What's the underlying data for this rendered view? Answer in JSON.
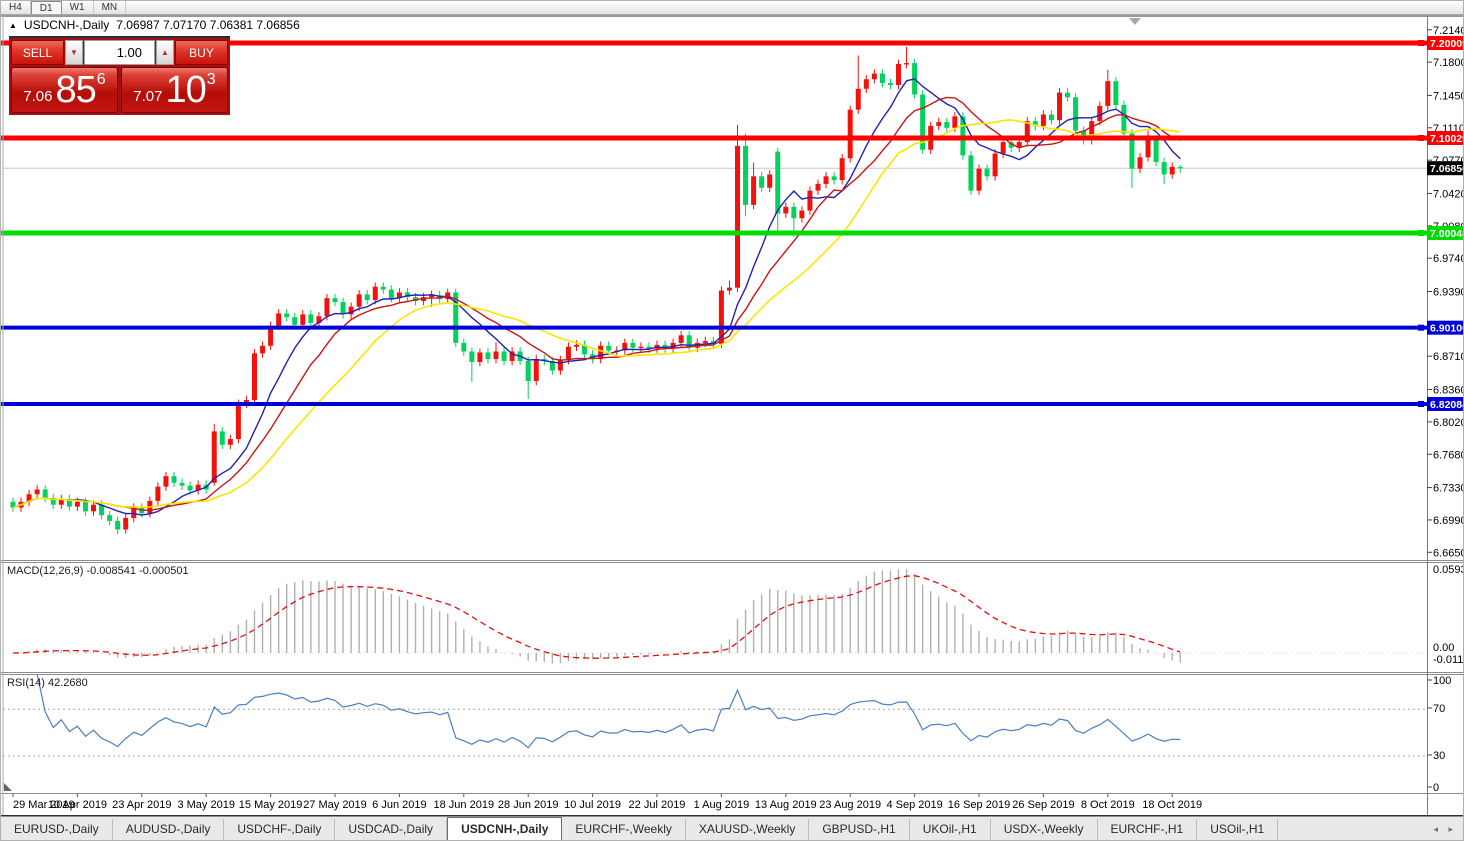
{
  "toolbar": {
    "periods": [
      "H4",
      "D1",
      "W1",
      "MN"
    ],
    "active_period": "D1"
  },
  "chart_title": {
    "arrow": "▲",
    "symbol": "USDCNH-,Daily",
    "ohlc": "7.06987 7.07170 7.06381 7.06856"
  },
  "trade_panel": {
    "sell_label": "SELL",
    "buy_label": "BUY",
    "volume": "1.00",
    "down_arrow": "▼",
    "up_arrow": "▲",
    "sell_price_small": "7.06",
    "sell_price_big": "85",
    "sell_price_sup": "6",
    "buy_price_small": "7.07",
    "buy_price_big": "10",
    "buy_price_sup": "3"
  },
  "tab_bar": {
    "tabs": [
      "EURUSD-,Daily",
      "AUDUSD-,Daily",
      "USDCHF-,Daily",
      "USDCAD-,Daily",
      "USDCNH-,Daily",
      "EURCHF-,Weekly",
      "XAUUSD-,Weekly",
      "GBPUSD-,H1",
      "UKOil-,H1",
      "USDX-,Weekly",
      "EURCHF-,H1",
      "USOil-,H1"
    ],
    "active_tab": "USDCNH-,Daily",
    "arrows": "◂ ▸"
  },
  "chart_data": {
    "type": "candlestick",
    "symbol": "USDCNH-",
    "timeframe": "Daily",
    "x_tick_labels": [
      "29 Mar 2019",
      "10 Apr 2019",
      "23 Apr 2019",
      "3 May 2019",
      "15 May 2019",
      "27 May 2019",
      "6 Jun 2019",
      "18 Jun 2019",
      "28 Jun 2019",
      "10 Jul 2019",
      "22 Jul 2019",
      "1 Aug 2019",
      "13 Aug 2019",
      "23 Aug 2019",
      "4 Sep 2019",
      "16 Sep 2019",
      "26 Sep 2019",
      "8 Oct 2019",
      "18 Oct 2019"
    ],
    "x_tick_every_n_candles": 8,
    "price_axis_ticks": [
      "7.21400",
      "7.18000",
      "7.14500",
      "7.11100",
      "7.07700",
      "7.04200",
      "7.00800",
      "6.97400",
      "6.93900",
      "6.87100",
      "6.83600",
      "6.80200",
      "6.76800",
      "6.73300",
      "6.69900",
      "6.66500"
    ],
    "horizontal_lines": [
      {
        "price": 7.20009,
        "label": "7.20009",
        "color": "#fe0000",
        "thickness": 5
      },
      {
        "price": 7.10029,
        "label": "7.10029",
        "color": "#fe0000",
        "thickness": 5
      },
      {
        "price": 7.00048,
        "label": "7.00048",
        "color": "#00dc00",
        "thickness": 5
      },
      {
        "price": 6.901,
        "label": "6.90100",
        "color": "#0000d8",
        "thickness": 4
      },
      {
        "price": 6.82084,
        "label": "6.82084",
        "color": "#0000d8",
        "thickness": 4
      }
    ],
    "current_price": {
      "value": 7.06856,
      "label": "7.06856",
      "badge_color": "#000000",
      "line_color": "#c8c8c8"
    },
    "colors": {
      "up": "#f3120b",
      "down": "#00d25c",
      "ma_fast": "#2121b4",
      "ma_mid": "#cc1414",
      "ma_slow": "#ffe400",
      "macd_hist": "#b0b0b0",
      "macd_signal": "#e01010",
      "rsi_line": "#4a7fc1"
    },
    "moving_average_periods": [
      8,
      13,
      21
    ],
    "indicators": {
      "macd": {
        "label": "MACD(12,26,9) -0.008541 -0.000501",
        "params": [
          12,
          26,
          9
        ],
        "axis_labels": [
          "0.059323",
          "0.00",
          "-0.011773"
        ],
        "axis_values": [
          0.059323,
          0.0,
          -0.011773
        ]
      },
      "rsi": {
        "label": "RSI(14) 42.2680",
        "period": 14,
        "value": 42.268,
        "axis_labels": [
          "100",
          "70",
          "30",
          "0"
        ],
        "axis_values": [
          100,
          70,
          30,
          0
        ],
        "level_lines": [
          70,
          30
        ]
      }
    },
    "ohlc": [
      [
        6.718,
        6.7225,
        6.7075,
        6.712
      ],
      [
        6.712,
        6.7225,
        6.7075,
        6.718
      ],
      [
        6.718,
        6.7305,
        6.7135,
        6.726
      ],
      [
        6.726,
        6.7355,
        6.7215,
        6.731
      ],
      [
        6.731,
        6.7355,
        6.7175,
        6.722
      ],
      [
        6.722,
        6.7265,
        6.7105,
        6.715
      ],
      [
        6.715,
        6.7255,
        6.7105,
        6.721
      ],
      [
        6.721,
        6.7255,
        6.7085,
        6.713
      ],
      [
        6.713,
        6.7225,
        6.7085,
        6.718
      ],
      [
        6.718,
        6.7225,
        6.7035,
        6.708
      ],
      [
        6.708,
        6.7195,
        6.7035,
        6.715
      ],
      [
        6.715,
        6.7195,
        6.6995,
        6.704
      ],
      [
        6.704,
        6.7085,
        6.6935,
        6.698
      ],
      [
        6.698,
        6.7025,
        6.684,
        6.689
      ],
      [
        6.689,
        6.7055,
        6.6845,
        6.701
      ],
      [
        6.701,
        6.7165,
        6.6965,
        6.712
      ],
      [
        6.712,
        6.7165,
        6.7015,
        6.706
      ],
      [
        6.706,
        6.7235,
        6.7015,
        6.719
      ],
      [
        6.719,
        6.7385,
        6.7145,
        6.734
      ],
      [
        6.734,
        6.7495,
        6.7295,
        6.745
      ],
      [
        6.745,
        6.7495,
        6.7335,
        6.738
      ],
      [
        6.738,
        6.7425,
        6.7305,
        6.735
      ],
      [
        6.735,
        6.7395,
        6.7255,
        6.73
      ],
      [
        6.73,
        6.7405,
        6.7255,
        6.736
      ],
      [
        6.736,
        6.7405,
        6.7265,
        6.731
      ],
      [
        6.738,
        6.8,
        6.735,
        6.792
      ],
      [
        6.792,
        6.7965,
        6.7735,
        6.778
      ],
      [
        6.778,
        6.7885,
        6.7735,
        6.784
      ],
      [
        6.784,
        6.8255,
        6.7795,
        6.821
      ],
      [
        6.821,
        6.8295,
        6.8165,
        6.825
      ],
      [
        6.825,
        6.8785,
        6.8205,
        6.874
      ],
      [
        6.874,
        6.8865,
        6.8695,
        6.882
      ],
      [
        6.882,
        6.9075,
        6.8775,
        6.903
      ],
      [
        6.903,
        6.9205,
        6.8985,
        6.916
      ],
      [
        6.916,
        6.9205,
        6.9075,
        6.912
      ],
      [
        6.912,
        6.9165,
        6.8995,
        6.904
      ],
      [
        6.904,
        6.9195,
        6.8995,
        6.915
      ],
      [
        6.915,
        6.9195,
        6.9015,
        6.906
      ],
      [
        6.906,
        6.9175,
        6.9015,
        6.913
      ],
      [
        6.913,
        6.9365,
        6.9085,
        6.932
      ],
      [
        6.932,
        6.9365,
        6.9235,
        6.928
      ],
      [
        6.928,
        6.9325,
        6.9105,
        6.915
      ],
      [
        6.915,
        6.9275,
        6.9105,
        6.923
      ],
      [
        6.923,
        6.9405,
        6.9185,
        6.936
      ],
      [
        6.936,
        6.9405,
        6.9255,
        6.93
      ],
      [
        6.93,
        6.9485,
        6.9255,
        6.944
      ],
      [
        6.944,
        6.9485,
        6.9365,
        6.941
      ],
      [
        6.941,
        6.9455,
        6.9275,
        6.932
      ],
      [
        6.932,
        6.9425,
        6.9275,
        6.938
      ],
      [
        6.938,
        6.9425,
        6.9285,
        6.933
      ],
      [
        6.933,
        6.9375,
        6.9245,
        6.929
      ],
      [
        6.929,
        6.9375,
        6.9245,
        6.933
      ],
      [
        6.933,
        6.94,
        6.923,
        6.935
      ],
      [
        6.935,
        6.9395,
        6.9265,
        6.931
      ],
      [
        6.931,
        6.942,
        6.9265,
        6.938
      ],
      [
        6.938,
        6.942,
        6.8805,
        6.885
      ],
      [
        6.885,
        6.8895,
        6.8715,
        6.876
      ],
      [
        6.876,
        6.88,
        6.844,
        6.865
      ],
      [
        6.865,
        6.879,
        6.8605,
        6.875
      ],
      [
        6.875,
        6.8795,
        6.8635,
        6.868
      ],
      [
        6.868,
        6.886,
        6.8635,
        6.876
      ],
      [
        6.876,
        6.8805,
        6.8615,
        6.866
      ],
      [
        6.866,
        6.8805,
        6.8615,
        6.876
      ],
      [
        6.876,
        6.8805,
        6.8615,
        6.866
      ],
      [
        6.866,
        6.8705,
        6.826,
        6.845
      ],
      [
        6.845,
        6.8725,
        6.8405,
        6.868
      ],
      [
        6.868,
        6.8725,
        6.8615,
        6.866
      ],
      [
        6.866,
        6.8705,
        6.8515,
        6.856
      ],
      [
        6.856,
        6.8715,
        6.8515,
        6.867
      ],
      [
        6.867,
        6.8855,
        6.8625,
        6.881
      ],
      [
        6.881,
        6.8875,
        6.8765,
        6.883
      ],
      [
        6.883,
        6.8875,
        6.8685,
        6.873
      ],
      [
        6.873,
        6.8775,
        6.8635,
        6.868
      ],
      [
        6.868,
        6.8865,
        6.8635,
        6.882
      ],
      [
        6.882,
        6.8865,
        6.8725,
        6.877
      ],
      [
        6.877,
        6.8815,
        6.8725,
        6.877
      ],
      [
        6.877,
        6.8895,
        6.8725,
        6.885
      ],
      [
        6.885,
        6.8895,
        6.8755,
        6.88
      ],
      [
        6.88,
        6.8855,
        6.8755,
        6.881
      ],
      [
        6.881,
        6.8855,
        6.8745,
        6.879
      ],
      [
        6.879,
        6.8875,
        6.8745,
        6.883
      ],
      [
        6.883,
        6.8875,
        6.8745,
        6.879
      ],
      [
        6.879,
        6.8895,
        6.8745,
        6.885
      ],
      [
        6.885,
        6.8975,
        6.8805,
        6.893
      ],
      [
        6.893,
        6.8975,
        6.8755,
        6.88
      ],
      [
        6.88,
        6.8895,
        6.8755,
        6.885
      ],
      [
        6.885,
        6.8915,
        6.8805,
        6.887
      ],
      [
        6.887,
        6.8915,
        6.8795,
        6.884
      ],
      [
        6.884,
        6.9445,
        6.8795,
        6.94
      ],
      [
        6.94,
        6.9505,
        6.9355,
        6.943
      ],
      [
        6.943,
        7.114,
        6.9385,
        7.092
      ],
      [
        7.092,
        7.105,
        7.018,
        7.03
      ],
      [
        7.03,
        7.0745,
        7.0255,
        7.06
      ],
      [
        7.06,
        7.0645,
        7.0435,
        7.048
      ],
      [
        7.048,
        7.0665,
        7.0435,
        7.062
      ],
      [
        7.086,
        7.09,
        7.002,
        7.021
      ],
      [
        7.021,
        7.0325,
        7.0165,
        7.028
      ],
      [
        7.028,
        7.0325,
        6.996,
        7.016
      ],
      [
        7.016,
        7.0285,
        7.0115,
        7.024
      ],
      [
        7.024,
        7.0495,
        7.0195,
        7.045
      ],
      [
        7.045,
        7.0565,
        7.0405,
        7.052
      ],
      [
        7.052,
        7.0645,
        7.0475,
        7.06
      ],
      [
        7.06,
        7.0645,
        7.0515,
        7.056
      ],
      [
        7.056,
        7.0835,
        7.0515,
        7.079
      ],
      [
        7.079,
        7.1345,
        7.0745,
        7.13
      ],
      [
        7.13,
        7.187,
        7.1255,
        7.152
      ],
      [
        7.152,
        7.1665,
        7.1475,
        7.162
      ],
      [
        7.162,
        7.1725,
        7.1575,
        7.168
      ],
      [
        7.168,
        7.1725,
        7.1535,
        7.158
      ],
      [
        7.158,
        7.1625,
        7.1515,
        7.156
      ],
      [
        7.156,
        7.1825,
        7.1515,
        7.178
      ],
      [
        7.178,
        7.196,
        7.1735,
        7.179
      ],
      [
        7.179,
        7.1835,
        7.1415,
        7.146
      ],
      [
        7.146,
        7.1505,
        7.0835,
        7.088
      ],
      [
        7.088,
        7.1175,
        7.0835,
        7.113
      ],
      [
        7.113,
        7.1215,
        7.1085,
        7.117
      ],
      [
        7.117,
        7.1215,
        7.1065,
        7.111
      ],
      [
        7.111,
        7.1275,
        7.1065,
        7.123
      ],
      [
        7.123,
        7.1275,
        7.0775,
        7.082
      ],
      [
        7.082,
        7.0865,
        7.0405,
        7.045
      ],
      [
        7.045,
        7.0725,
        7.0405,
        7.068
      ],
      [
        7.068,
        7.0725,
        7.0555,
        7.06
      ],
      [
        7.06,
        7.0885,
        7.0555,
        7.084
      ],
      [
        7.084,
        7.1005,
        7.0795,
        7.096
      ],
      [
        7.096,
        7.1005,
        7.0855,
        7.09
      ],
      [
        7.09,
        7.1005,
        7.0855,
        7.096
      ],
      [
        7.096,
        7.1225,
        7.0915,
        7.118
      ],
      [
        7.118,
        7.1225,
        7.1085,
        7.113
      ],
      [
        7.113,
        7.1295,
        7.1085,
        7.125
      ],
      [
        7.125,
        7.1295,
        7.1145,
        7.119
      ],
      [
        7.119,
        7.1525,
        7.1145,
        7.148
      ],
      [
        7.148,
        7.1525,
        7.1385,
        7.143
      ],
      [
        7.143,
        7.1475,
        7.1035,
        7.108
      ],
      [
        7.108,
        7.1125,
        7.0935,
        7.098
      ],
      [
        7.098,
        7.1225,
        7.0935,
        7.118
      ],
      [
        7.118,
        7.1385,
        7.1135,
        7.134
      ],
      [
        7.134,
        7.172,
        7.1295,
        7.16
      ],
      [
        7.16,
        7.1645,
        7.1305,
        7.135
      ],
      [
        7.135,
        7.1395,
        7.1005,
        7.105
      ],
      [
        7.105,
        7.1095,
        7.048,
        7.068
      ],
      [
        7.068,
        7.0845,
        7.0635,
        7.08
      ],
      [
        7.08,
        7.108,
        7.0755,
        7.098
      ],
      [
        7.098,
        7.1025,
        7.0705,
        7.075
      ],
      [
        7.075,
        7.0795,
        7.052,
        7.062
      ],
      [
        7.062,
        7.0745,
        7.0575,
        7.07
      ],
      [
        7.0699,
        7.0717,
        7.0638,
        7.0686
      ]
    ]
  }
}
